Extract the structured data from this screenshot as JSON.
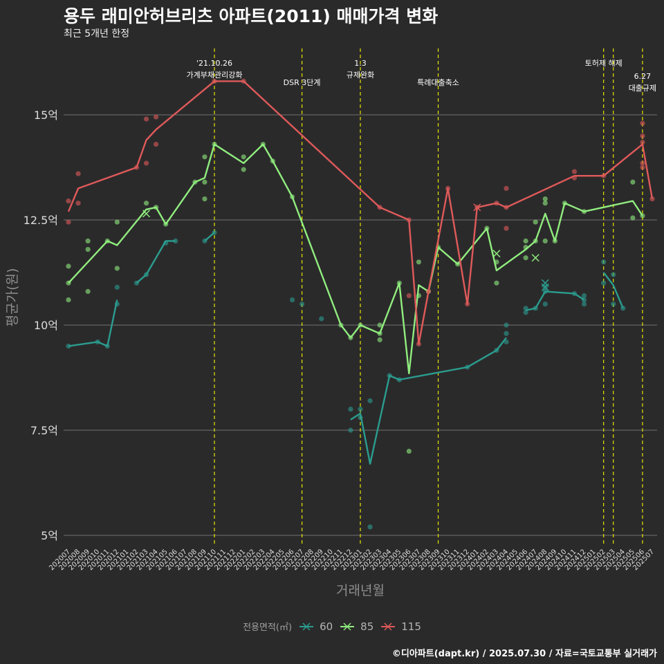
{
  "chart_data": {
    "type": "line",
    "title": "용두 래미안허브리츠 아파트(2011) 매매가격 변화",
    "subtitle": "최근 5개년 한정",
    "xlabel": "거래년월",
    "ylabel": "평균가(원)",
    "legend_title": "전용면적(㎡)",
    "caption": "©디아파트(dapt.kr) / 2025.07.30 / 자료=국토교통부 실거래가",
    "ylim": [
      4.5,
      16.5
    ],
    "yticks": [
      5,
      7.5,
      10,
      12.5,
      15
    ],
    "ytick_labels": [
      "5억",
      "7.5억",
      "10억",
      "12.5억",
      "15억"
    ],
    "categories": [
      "202007",
      "202008",
      "202009",
      "202010",
      "202011",
      "202012",
      "202101",
      "202102",
      "202103",
      "202104",
      "202105",
      "202106",
      "202107",
      "202108",
      "202109",
      "202110",
      "202111",
      "202112",
      "202201",
      "202202",
      "202203",
      "202204",
      "202205",
      "202206",
      "202207",
      "202208",
      "202209",
      "202210",
      "202211",
      "202212",
      "202301",
      "202302",
      "202303",
      "202304",
      "202305",
      "202306",
      "202307",
      "202308",
      "202309",
      "202310",
      "202311",
      "202312",
      "202401",
      "202402",
      "202403",
      "202404",
      "202405",
      "202406",
      "202407",
      "202408",
      "202409",
      "202410",
      "202411",
      "202412",
      "202501",
      "202502",
      "202503",
      "202504",
      "202505",
      "202506",
      "202507"
    ],
    "events": [
      {
        "at": "202110",
        "lines": [
          "'21.10.26",
          "가계부채관리강화"
        ],
        "pos": "top"
      },
      {
        "at": "202207",
        "lines": [
          "DSR 3단계"
        ],
        "pos": "mid"
      },
      {
        "at": "202301",
        "lines": [
          "1.3",
          "규제완화"
        ],
        "pos": "top"
      },
      {
        "at": "202309",
        "lines": [
          "특례대출축소"
        ],
        "pos": "mid"
      },
      {
        "at": "202502",
        "lines": [
          "토허제 해제"
        ],
        "pos": "top"
      },
      {
        "at": "202503",
        "lines": [],
        "pos": "top"
      },
      {
        "at": "202506",
        "lines": [
          "6.27",
          "대출규제"
        ],
        "pos": "low"
      }
    ],
    "series": [
      {
        "name": "60",
        "color": "#2a9d8f",
        "segments": [
          [
            [
              "202007",
              9.5
            ],
            [
              "202010",
              9.6
            ],
            [
              "202011",
              9.5
            ],
            [
              "202012",
              10.6
            ]
          ],
          [
            [
              "202102",
              11.0
            ],
            [
              "202103",
              11.2
            ],
            [
              "202105",
              12.0
            ],
            [
              "202106",
              12.0
            ]
          ],
          [
            [
              "202109",
              12.0
            ],
            [
              "202110",
              12.2
            ]
          ],
          [
            [
              "202212",
              7.75
            ],
            [
              "202301",
              7.9
            ],
            [
              "202302",
              6.7
            ],
            [
              "202304",
              8.8
            ],
            [
              "202305",
              8.7
            ],
            [
              "202312",
              9.0
            ],
            [
              "202403",
              9.4
            ],
            [
              "202404",
              9.7
            ]
          ],
          [
            [
              "202406",
              10.35
            ],
            [
              "202407",
              10.4
            ],
            [
              "202408",
              10.8
            ],
            [
              "202411",
              10.75
            ],
            [
              "202412",
              10.6
            ]
          ],
          [
            [
              "202502",
              11.25
            ],
            [
              "202503",
              10.95
            ],
            [
              "202504",
              10.4
            ]
          ]
        ],
        "points": [
          [
            "202007",
            9.5
          ],
          [
            "202010",
            9.6
          ],
          [
            "202011",
            9.5
          ],
          [
            "202012",
            10.5
          ],
          [
            "202012",
            10.9
          ],
          [
            "202102",
            11.0
          ],
          [
            "202103",
            11.2
          ],
          [
            "202105",
            11.95
          ],
          [
            "202106",
            12.0
          ],
          [
            "202109",
            12.0
          ],
          [
            "202110",
            12.2
          ],
          [
            "202206",
            10.6
          ],
          [
            "202207",
            10.5
          ],
          [
            "202209",
            10.15
          ],
          [
            "202212",
            8.0
          ],
          [
            "202212",
            7.5
          ],
          [
            "202301",
            8.0
          ],
          [
            "202301",
            7.8
          ],
          [
            "202302",
            8.2
          ],
          [
            "202302",
            5.2
          ],
          [
            "202304",
            8.8
          ],
          [
            "202305",
            8.7
          ],
          [
            "202312",
            9.0
          ],
          [
            "202403",
            9.4
          ],
          [
            "202404",
            9.6
          ],
          [
            "202404",
            9.8
          ],
          [
            "202404",
            10.0
          ],
          [
            "202406",
            10.3
          ],
          [
            "202406",
            10.4
          ],
          [
            "202407",
            10.4
          ],
          [
            "202408",
            10.5
          ],
          [
            "202408",
            10.8
          ],
          [
            "202408",
            10.9
          ],
          [
            "202411",
            10.75
          ],
          [
            "202412",
            10.6
          ],
          [
            "202412",
            10.5
          ],
          [
            "202412",
            10.7
          ],
          [
            "202502",
            11.5
          ],
          [
            "202502",
            11.0
          ],
          [
            "202503",
            11.2
          ],
          [
            "202503",
            10.5
          ],
          [
            "202504",
            10.4
          ]
        ],
        "crosses": [
          [
            "202408",
            10.9
          ],
          [
            "202408",
            11.0
          ]
        ]
      },
      {
        "name": "85",
        "color": "#90ee7e",
        "segments": [
          [
            [
              "202007",
              11.0
            ],
            [
              "202011",
              12.0
            ],
            [
              "202012",
              11.9
            ],
            [
              "202103",
              12.75
            ],
            [
              "202104",
              12.8
            ],
            [
              "202105",
              12.4
            ],
            [
              "202108",
              13.4
            ],
            [
              "202109",
              13.5
            ],
            [
              "202110",
              14.3
            ],
            [
              "202201",
              13.85
            ],
            [
              "202203",
              14.3
            ],
            [
              "202204",
              13.9
            ],
            [
              "202206",
              13.05
            ],
            [
              "202211",
              10.0
            ],
            [
              "202212",
              9.7
            ],
            [
              "202301",
              10.0
            ],
            [
              "202303",
              9.8
            ],
            [
              "202305",
              11.0
            ],
            [
              "202306",
              8.85
            ],
            [
              "202307",
              10.95
            ],
            [
              "202308",
              10.8
            ],
            [
              "202309",
              11.85
            ],
            [
              "202311",
              11.45
            ],
            [
              "202402",
              12.3
            ],
            [
              "202403",
              11.3
            ],
            [
              "202406",
              11.8
            ],
            [
              "202407",
              12.0
            ],
            [
              "202408",
              12.65
            ],
            [
              "202409",
              12.0
            ],
            [
              "202410",
              12.9
            ],
            [
              "202412",
              12.7
            ],
            [
              "202505",
              12.95
            ],
            [
              "202506",
              12.6
            ]
          ]
        ],
        "points": [
          [
            "202007",
            11.4
          ],
          [
            "202007",
            10.6
          ],
          [
            "202007",
            11.0
          ],
          [
            "202009",
            11.8
          ],
          [
            "202009",
            12.0
          ],
          [
            "202009",
            10.8
          ],
          [
            "202011",
            12.0
          ],
          [
            "202012",
            12.45
          ],
          [
            "202012",
            11.35
          ],
          [
            "202103",
            12.9
          ],
          [
            "202104",
            12.8
          ],
          [
            "202105",
            12.4
          ],
          [
            "202108",
            13.4
          ],
          [
            "202109",
            14.0
          ],
          [
            "202109",
            13.4
          ],
          [
            "202109",
            13.0
          ],
          [
            "202110",
            14.3
          ],
          [
            "202201",
            14.0
          ],
          [
            "202201",
            13.7
          ],
          [
            "202203",
            14.3
          ],
          [
            "202204",
            13.9
          ],
          [
            "202206",
            13.05
          ],
          [
            "202211",
            10.0
          ],
          [
            "202212",
            9.7
          ],
          [
            "202301",
            10.0
          ],
          [
            "202303",
            10.0
          ],
          [
            "202303",
            9.8
          ],
          [
            "202303",
            9.65
          ],
          [
            "202305",
            11.0
          ],
          [
            "202306",
            7.0
          ],
          [
            "202307",
            11.5
          ],
          [
            "202307",
            10.7
          ],
          [
            "202308",
            10.8
          ],
          [
            "202309",
            11.85
          ],
          [
            "202311",
            11.45
          ],
          [
            "202402",
            12.3
          ],
          [
            "202403",
            11.5
          ],
          [
            "202403",
            11.0
          ],
          [
            "202406",
            12.0
          ],
          [
            "202406",
            11.6
          ],
          [
            "202406",
            11.85
          ],
          [
            "202407",
            12.45
          ],
          [
            "202407",
            12.0
          ],
          [
            "202408",
            13.0
          ],
          [
            "202408",
            12.9
          ],
          [
            "202408",
            12.0
          ],
          [
            "202409",
            12.0
          ],
          [
            "202410",
            12.9
          ],
          [
            "202412",
            12.7
          ],
          [
            "202505",
            13.4
          ],
          [
            "202505",
            12.55
          ],
          [
            "202506",
            12.6
          ]
        ],
        "crosses": [
          [
            "202103",
            12.65
          ],
          [
            "202403",
            11.7
          ],
          [
            "202407",
            11.6
          ]
        ]
      },
      {
        "name": "115",
        "color": "#e05a5a",
        "segments": [
          [
            [
              "202007",
              12.7
            ],
            [
              "202008",
              13.25
            ],
            [
              "202102",
              13.75
            ],
            [
              "202103",
              14.4
            ],
            [
              "202104",
              14.65
            ],
            [
              "202110",
              15.8
            ],
            [
              "202201",
              15.8
            ],
            [
              "202303",
              12.8
            ],
            [
              "202306",
              12.5
            ],
            [
              "202307",
              9.55
            ],
            [
              "202308",
              10.8
            ],
            [
              "202310",
              13.25
            ],
            [
              "202312",
              10.5
            ],
            [
              "202401",
              12.8
            ],
            [
              "202403",
              12.9
            ],
            [
              "202404",
              12.8
            ],
            [
              "202411",
              13.55
            ],
            [
              "202502",
              13.55
            ],
            [
              "202506",
              14.3
            ],
            [
              "202507",
              13.0
            ]
          ]
        ],
        "points": [
          [
            "202007",
            12.95
          ],
          [
            "202007",
            12.45
          ],
          [
            "202008",
            13.6
          ],
          [
            "202008",
            12.9
          ],
          [
            "202102",
            13.75
          ],
          [
            "202103",
            14.9
          ],
          [
            "202103",
            13.85
          ],
          [
            "202104",
            14.95
          ],
          [
            "202104",
            14.3
          ],
          [
            "202110",
            15.8
          ],
          [
            "202201",
            15.8
          ],
          [
            "202303",
            12.8
          ],
          [
            "202306",
            12.5
          ],
          [
            "202306",
            10.7
          ],
          [
            "202307",
            9.55
          ],
          [
            "202308",
            10.8
          ],
          [
            "202310",
            13.25
          ],
          [
            "202312",
            10.5
          ],
          [
            "202401",
            12.8
          ],
          [
            "202403",
            12.9
          ],
          [
            "202404",
            13.25
          ],
          [
            "202404",
            12.3
          ],
          [
            "202404",
            12.8
          ],
          [
            "202411",
            13.65
          ],
          [
            "202411",
            13.5
          ],
          [
            "202502",
            13.55
          ],
          [
            "202506",
            14.8
          ],
          [
            "202506",
            14.5
          ],
          [
            "202506",
            14.35
          ],
          [
            "202506",
            13.85
          ],
          [
            "202506",
            13.75
          ],
          [
            "202507",
            13.0
          ]
        ],
        "crosses": [
          [
            "202401",
            12.8
          ]
        ]
      }
    ]
  }
}
